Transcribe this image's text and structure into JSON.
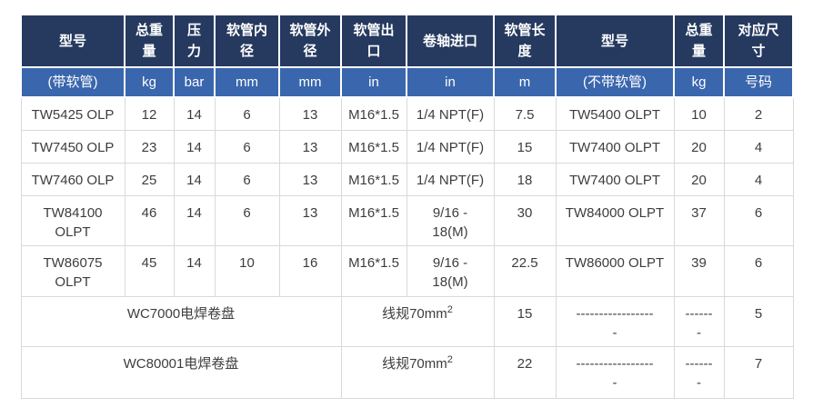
{
  "colors": {
    "header_dark": "#263a60",
    "header_blue": "#3a66ad",
    "body_border": "#d9d9d9",
    "body_text": "#3d3d3d",
    "header_text": "#ffffff"
  },
  "table": {
    "header_top": [
      "型号",
      "总重\n量",
      "压\n力",
      "软管内\n径",
      "软管外\n径",
      "软管出\n口",
      "卷轴进口",
      "软管长\n度",
      "型号",
      "总重\n量",
      "对应尺\n寸"
    ],
    "header_units": [
      "(带软管)",
      "kg",
      "bar",
      "mm",
      "mm",
      "in",
      "in",
      "m",
      "(不带软管)",
      "kg",
      "号码"
    ],
    "rows": [
      [
        "TW5425 OLP",
        "12",
        "14",
        "6",
        "13",
        "M16*1.5",
        "1/4 NPT(F)",
        "7.5",
        "TW5400 OLPT",
        "10",
        "2"
      ],
      [
        "TW7450 OLP",
        "23",
        "14",
        "6",
        "13",
        "M16*1.5",
        "1/4 NPT(F)",
        "15",
        "TW7400 OLPT",
        "20",
        "4"
      ],
      [
        "TW7460 OLP",
        "25",
        "14",
        "6",
        "13",
        "M16*1.5",
        "1/4 NPT(F)",
        "18",
        "TW7400 OLPT",
        "20",
        "4"
      ],
      [
        "TW84100\nOLPT",
        "46",
        "14",
        "6",
        "13",
        "M16*1.5",
        "9/16 -\n18(M)",
        "30",
        "TW84000 OLPT",
        "37",
        "6"
      ],
      [
        "TW86075\nOLPT",
        "45",
        "14",
        "10",
        "16",
        "M16*1.5",
        "9/16 -\n18(M)",
        "22.5",
        "TW86000 OLPT",
        "39",
        "6"
      ],
      [
        {
          "text": "WC7000电焊卷盘",
          "colspan": 5
        },
        {
          "text": "线规70mm",
          "sup": "2",
          "colspan": 2
        },
        "15",
        "-----------------\n-",
        "------\n-",
        "5"
      ],
      [
        {
          "text": "WC80001电焊卷盘",
          "colspan": 5
        },
        {
          "text": "线规70mm",
          "sup": "2",
          "colspan": 2
        },
        "22",
        "-----------------\n-",
        "------\n-",
        "7"
      ]
    ]
  }
}
